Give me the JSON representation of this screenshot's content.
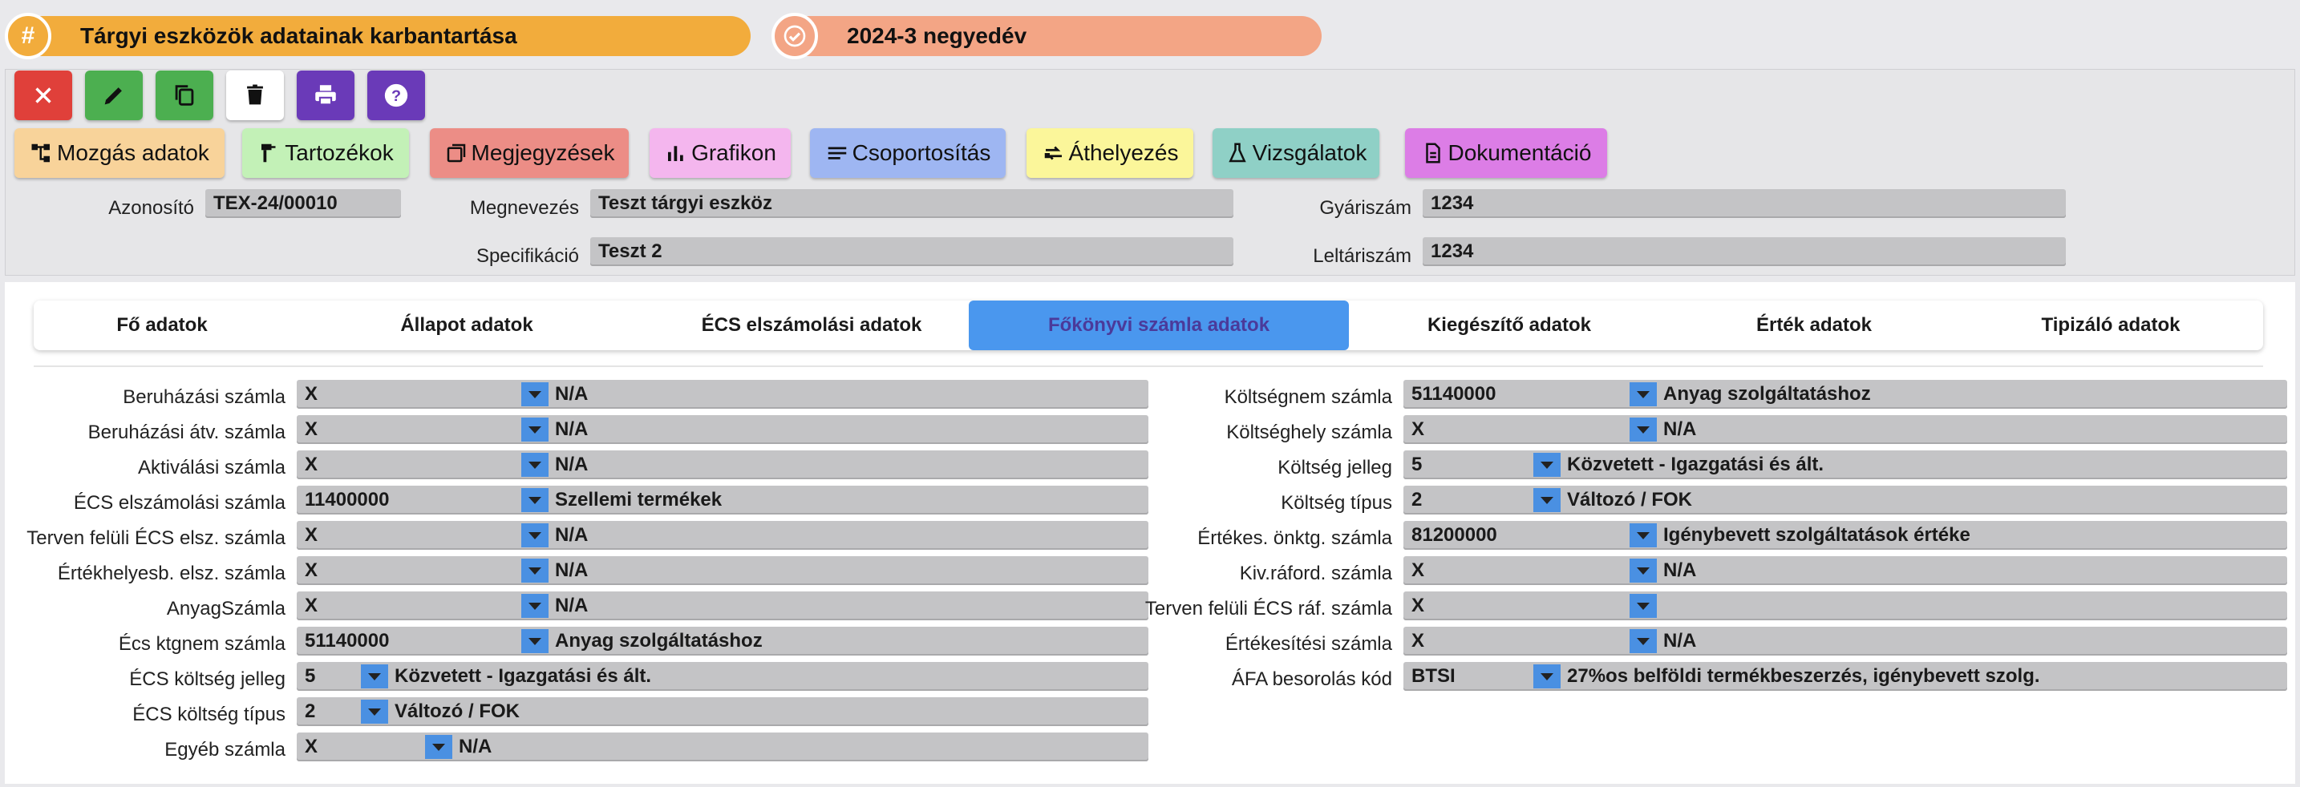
{
  "header": {
    "title": "Tárgyi eszközök adatainak karbantartása",
    "title_icon": "hash-icon",
    "period": "2024-3 negyedév",
    "period_icon": "check-badge-icon"
  },
  "toolbar": {
    "buttons": [
      {
        "name": "close",
        "icon": "close-icon",
        "color": "#e0403a"
      },
      {
        "name": "edit",
        "icon": "pencil-icon",
        "color": "#4caf50"
      },
      {
        "name": "copy",
        "icon": "copy-icon",
        "color": "#4caf50"
      },
      {
        "name": "delete",
        "icon": "trash-icon",
        "color": "#ffffff"
      },
      {
        "name": "print",
        "icon": "printer-icon",
        "color": "#6a3ab8"
      },
      {
        "name": "help",
        "icon": "help-icon",
        "color": "#6a3ab8"
      }
    ]
  },
  "nav": {
    "movement": "Mozgás adatok",
    "accessories": "Tartozékok",
    "notes": "Megjegyzések",
    "chart": "Grafikon",
    "grouping": "Csoportosítás",
    "relocation": "Áthelyezés",
    "inspections": "Vizsgálatok",
    "documentation": "Dokumentáció"
  },
  "asset": {
    "id_label": "Azonosító",
    "id_value": "TEX-24/00010",
    "name_label": "Megnevezés",
    "name_value": "Teszt tárgyi eszköz",
    "serial_label": "Gyáriszám",
    "serial_value": "1234",
    "spec_label": "Specifikáció",
    "spec_value": "Teszt 2",
    "inventory_label": "Leltáriszám",
    "inventory_value": "1234"
  },
  "tabs": [
    {
      "label": "Fő adatok",
      "active": false
    },
    {
      "label": "Állapot adatok",
      "active": false
    },
    {
      "label": "ÉCS elszámolási adatok",
      "active": false
    },
    {
      "label": "Főkönyvi számla adatok",
      "active": true
    },
    {
      "label": "Kiegészítő adatok",
      "active": false
    },
    {
      "label": "Érték adatok",
      "active": false
    },
    {
      "label": "Tipizáló adatok",
      "active": false
    }
  ],
  "left_rows": [
    {
      "label": "Beruházási számla",
      "code": "X",
      "desc": "N/A"
    },
    {
      "label": "Beruházási átv. számla",
      "code": "X",
      "desc": "N/A"
    },
    {
      "label": "Aktiválási számla",
      "code": "X",
      "desc": "N/A"
    },
    {
      "label": "ÉCS elszámolási számla",
      "code": "11400000",
      "desc": "Szellemi termékek"
    },
    {
      "label": "Terven felüli ÉCS elsz. számla",
      "code": "X",
      "desc": "N/A"
    },
    {
      "label": "Értékhelyesb. elsz. számla",
      "code": "X",
      "desc": "N/A"
    },
    {
      "label": "AnyagSzámla",
      "code": "X",
      "desc": "N/A"
    },
    {
      "label": "Écs ktgnem számla",
      "code": "51140000",
      "desc": "Anyag szolgáltatáshoz"
    },
    {
      "label": "ÉCS költség jelleg",
      "code": "5",
      "desc": "Közvetett - Igazgatási és ált."
    },
    {
      "label": "ÉCS költség típus",
      "code": "2",
      "desc": "Változó / FOK"
    },
    {
      "label": "Egyéb számla",
      "code": "X",
      "desc": "N/A"
    }
  ],
  "right_rows": [
    {
      "label": "Költségnem számla",
      "code": "51140000",
      "desc": "Anyag szolgáltatáshoz"
    },
    {
      "label": "Költséghely számla",
      "code": "X",
      "desc": "N/A"
    },
    {
      "label": "Költség jelleg",
      "code": "5",
      "desc": "Közvetett - Igazgatási és ált."
    },
    {
      "label": "Költség típus",
      "code": "2",
      "desc": "Változó / FOK"
    },
    {
      "label": "Értékes. önktg. számla",
      "code": "81200000",
      "desc": "Igénybevett szolgáltatások értéke"
    },
    {
      "label": "Kiv.ráford. számla",
      "code": "X",
      "desc": "N/A"
    },
    {
      "label": "Terven felüli ÉCS ráf. számla",
      "code": "X",
      "desc": ""
    },
    {
      "label": "Értékesítési számla",
      "code": "X",
      "desc": "N/A"
    },
    {
      "label": "ÁFA besorolás kód",
      "code": "BTSI",
      "desc": "27%os belföldi termékbeszerzés, igénybevett szolg."
    }
  ]
}
